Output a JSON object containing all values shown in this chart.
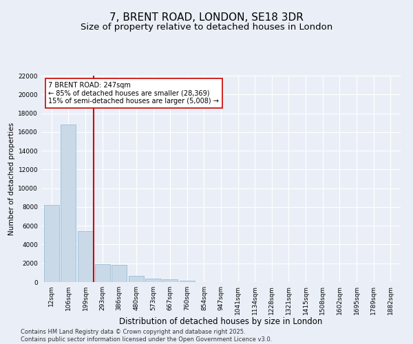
{
  "title": "7, BRENT ROAD, LONDON, SE18 3DR",
  "subtitle": "Size of property relative to detached houses in London",
  "xlabel": "Distribution of detached houses by size in London",
  "ylabel": "Number of detached properties",
  "categories": [
    "12sqm",
    "106sqm",
    "199sqm",
    "293sqm",
    "386sqm",
    "480sqm",
    "573sqm",
    "667sqm",
    "760sqm",
    "854sqm",
    "947sqm",
    "1041sqm",
    "1134sqm",
    "1228sqm",
    "1321sqm",
    "1415sqm",
    "1508sqm",
    "1602sqm",
    "1695sqm",
    "1789sqm",
    "1882sqm"
  ],
  "values": [
    8200,
    16800,
    5450,
    1900,
    1850,
    680,
    370,
    270,
    180,
    0,
    0,
    0,
    0,
    0,
    0,
    0,
    0,
    0,
    0,
    0,
    0
  ],
  "bar_color": "#c9d9e8",
  "bar_edge_color": "#8ab4d0",
  "vline_x": 2.5,
  "vline_color": "#cc0000",
  "annotation_text": "7 BRENT ROAD: 247sqm\n← 85% of detached houses are smaller (28,369)\n15% of semi-detached houses are larger (5,008) →",
  "ylim": [
    0,
    22000
  ],
  "bg_color": "#eaeff7",
  "plot_bg_color": "#eaeff7",
  "grid_color": "#ffffff",
  "footnote": "Contains HM Land Registry data © Crown copyright and database right 2025.\nContains public sector information licensed under the Open Government Licence v3.0.",
  "title_fontsize": 11,
  "subtitle_fontsize": 9.5,
  "ylabel_fontsize": 7.5,
  "xlabel_fontsize": 8.5,
  "tick_fontsize": 6.5,
  "yticks": [
    0,
    2000,
    4000,
    6000,
    8000,
    10000,
    12000,
    14000,
    16000,
    18000,
    20000,
    22000
  ]
}
